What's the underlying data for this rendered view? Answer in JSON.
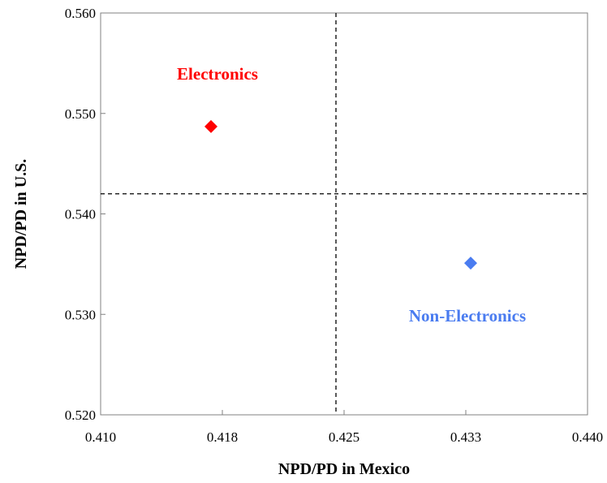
{
  "chart_data": {
    "type": "scatter",
    "xlabel": "NPD/PD in Mexico",
    "ylabel": "NPD/PD in U.S.",
    "xlim": [
      0.41,
      0.44
    ],
    "ylim": [
      0.52,
      0.56
    ],
    "x_ticks": [
      "0.410",
      "0.418",
      "0.425",
      "0.433",
      "0.440"
    ],
    "y_ticks": [
      "0.520",
      "0.530",
      "0.540",
      "0.550",
      "0.560"
    ],
    "x_tick_values": [
      0.41,
      0.4175,
      0.425,
      0.4325,
      0.44
    ],
    "y_tick_values": [
      0.52,
      0.53,
      0.54,
      0.55,
      0.56
    ],
    "grid": false,
    "reference_lines": {
      "x": 0.4245,
      "y": 0.542
    },
    "points": [
      {
        "label": "Electronics",
        "x": 0.4168,
        "y": 0.5487,
        "color": "#ff0000"
      },
      {
        "label": "Non-Electronics",
        "x": 0.4328,
        "y": 0.5351,
        "color": "#4a7cf0"
      }
    ]
  }
}
